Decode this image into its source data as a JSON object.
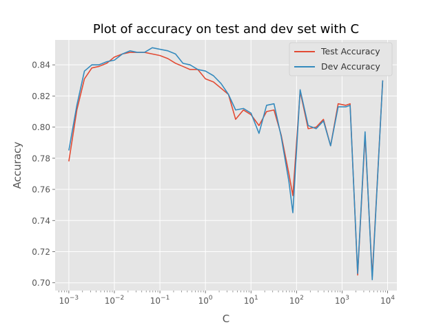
{
  "chart_data": {
    "type": "line",
    "title": "Plot of accuracy on test and dev set with C",
    "xlabel": "C",
    "ylabel": "Accuracy",
    "xscale": "log",
    "xlim": [
      0.0005,
      16000
    ],
    "ylim": [
      0.695,
      0.856
    ],
    "grid": true,
    "legend_position": "top-right",
    "x_ticks": [
      {
        "value": 0.001,
        "base": "10",
        "exp": "−3"
      },
      {
        "value": 0.01,
        "base": "10",
        "exp": "−2"
      },
      {
        "value": 0.1,
        "base": "10",
        "exp": "−1"
      },
      {
        "value": 1,
        "base": "10",
        "exp": "0"
      },
      {
        "value": 10,
        "base": "10",
        "exp": "1"
      },
      {
        "value": 100,
        "base": "10",
        "exp": "2"
      },
      {
        "value": 1000,
        "base": "10",
        "exp": "3"
      },
      {
        "value": 10000,
        "base": "10",
        "exp": "4"
      }
    ],
    "y_ticks": [
      {
        "value": 0.7,
        "label": "0.70"
      },
      {
        "value": 0.72,
        "label": "0.72"
      },
      {
        "value": 0.74,
        "label": "0.74"
      },
      {
        "value": 0.76,
        "label": "0.76"
      },
      {
        "value": 0.78,
        "label": "0.78"
      },
      {
        "value": 0.8,
        "label": "0.80"
      },
      {
        "value": 0.82,
        "label": "0.82"
      },
      {
        "value": 0.84,
        "label": "0.84"
      }
    ],
    "x": [
      0.001,
      0.0015,
      0.0022,
      0.0032,
      0.0046,
      0.0068,
      0.01,
      0.015,
      0.022,
      0.032,
      0.046,
      0.068,
      0.1,
      0.15,
      0.22,
      0.32,
      0.46,
      0.68,
      1,
      1.5,
      2.2,
      3.2,
      4.6,
      6.8,
      10,
      15,
      22,
      32,
      46,
      68,
      83,
      120,
      180,
      270,
      390,
      560,
      820,
      1200,
      1500,
      2200,
      3200,
      4600,
      7800
    ],
    "series": [
      {
        "name": "Test Accuracy",
        "color": "#e24a33",
        "values": [
          0.778,
          0.811,
          0.831,
          0.838,
          0.839,
          0.841,
          0.845,
          0.847,
          0.848,
          0.848,
          0.848,
          0.847,
          0.846,
          0.844,
          0.841,
          0.839,
          0.837,
          0.837,
          0.831,
          0.829,
          0.825,
          0.821,
          0.805,
          0.811,
          0.808,
          0.801,
          0.81,
          0.811,
          0.795,
          0.77,
          0.756,
          0.823,
          0.799,
          0.8,
          0.805,
          0.788,
          0.815,
          0.814,
          0.815,
          0.705,
          0.795,
          0.704,
          0.83
        ]
      },
      {
        "name": "Dev Accuracy",
        "color": "#348abd",
        "values": [
          0.785,
          0.814,
          0.836,
          0.84,
          0.84,
          0.842,
          0.843,
          0.847,
          0.849,
          0.848,
          0.848,
          0.851,
          0.85,
          0.849,
          0.847,
          0.841,
          0.84,
          0.837,
          0.836,
          0.833,
          0.828,
          0.821,
          0.811,
          0.812,
          0.809,
          0.796,
          0.814,
          0.815,
          0.794,
          0.765,
          0.745,
          0.824,
          0.801,
          0.799,
          0.804,
          0.788,
          0.813,
          0.813,
          0.814,
          0.706,
          0.797,
          0.702,
          0.83
        ]
      }
    ]
  }
}
